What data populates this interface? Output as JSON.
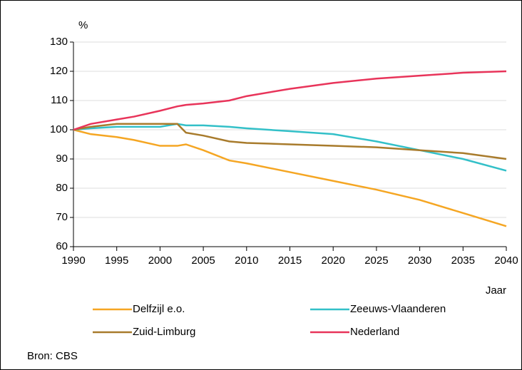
{
  "chart_data": {
    "type": "line",
    "y_label": "%",
    "x_label": "Jaar",
    "source": "Bron: CBS",
    "x": [
      1990,
      1992,
      1995,
      1997,
      2000,
      2002,
      2003,
      2005,
      2008,
      2010,
      2015,
      2020,
      2025,
      2030,
      2035,
      2040
    ],
    "series": [
      {
        "name": "Delfzijl e.o.",
        "color": "#f5a623",
        "values": [
          100,
          98.5,
          97.5,
          96.5,
          94.5,
          94.5,
          95,
          93,
          89.5,
          88.5,
          85.5,
          82.5,
          79.5,
          76,
          71.5,
          67
        ]
      },
      {
        "name": "Zeeuws-Vlaanderen",
        "color": "#33c0c8",
        "values": [
          100,
          100.5,
          101,
          101,
          101,
          102,
          101.5,
          101.5,
          101,
          100.5,
          99.5,
          98.5,
          96,
          93,
          90,
          86
        ]
      },
      {
        "name": "Zuid-Limburg",
        "color": "#a87b2c",
        "values": [
          100,
          101,
          102,
          102,
          102,
          102,
          99,
          98,
          96,
          95.5,
          95,
          94.5,
          94,
          93,
          92,
          90
        ]
      },
      {
        "name": "Nederland",
        "color": "#e8345a",
        "values": [
          100,
          102,
          103.5,
          104.5,
          106.5,
          108,
          108.5,
          109,
          110,
          111.5,
          114,
          116,
          117.5,
          118.5,
          119.5,
          120
        ]
      }
    ],
    "xlim": [
      1990,
      2040
    ],
    "xticks": [
      1990,
      1995,
      2000,
      2005,
      2010,
      2015,
      2020,
      2025,
      2030,
      2035,
      2040
    ],
    "ylim": [
      60,
      130
    ],
    "yticks": [
      60,
      70,
      80,
      90,
      100,
      110,
      120,
      130
    ],
    "grid": true
  }
}
